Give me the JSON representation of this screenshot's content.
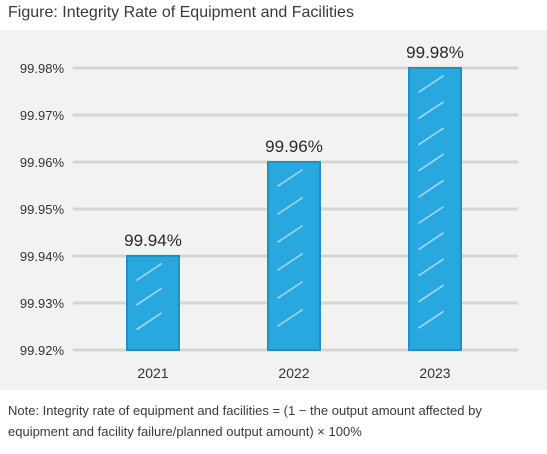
{
  "figure_title": "Figure: Integrity Rate of Equipment and Facilities",
  "note": "Note: Integrity rate of equipment and facilities = (1 − the output amount affected by equipment and facility failure/planned output amount) × 100%",
  "colors": {
    "bar_fill": "#29a8e0",
    "bar_stroke": "#1e90c8",
    "grid": "#cfcfcf",
    "background": "#f2f2f2",
    "text": "#333333"
  },
  "chart_data": {
    "type": "bar",
    "categories": [
      "2021",
      "2022",
      "2023"
    ],
    "values": [
      99.94,
      99.96,
      99.98
    ],
    "data_labels": [
      "99.94%",
      "99.96%",
      "99.98%"
    ],
    "ytick_labels": [
      "99.98%",
      "99.97%",
      "99.96%",
      "99.95%",
      "99.94%",
      "99.93%",
      "99.92%"
    ],
    "ytick_values": [
      99.98,
      99.97,
      99.96,
      99.95,
      99.94,
      99.93,
      99.92
    ],
    "ylim": [
      99.92,
      99.98
    ],
    "title": "",
    "xlabel": "",
    "ylabel": "",
    "grid": true,
    "legend": "none"
  }
}
